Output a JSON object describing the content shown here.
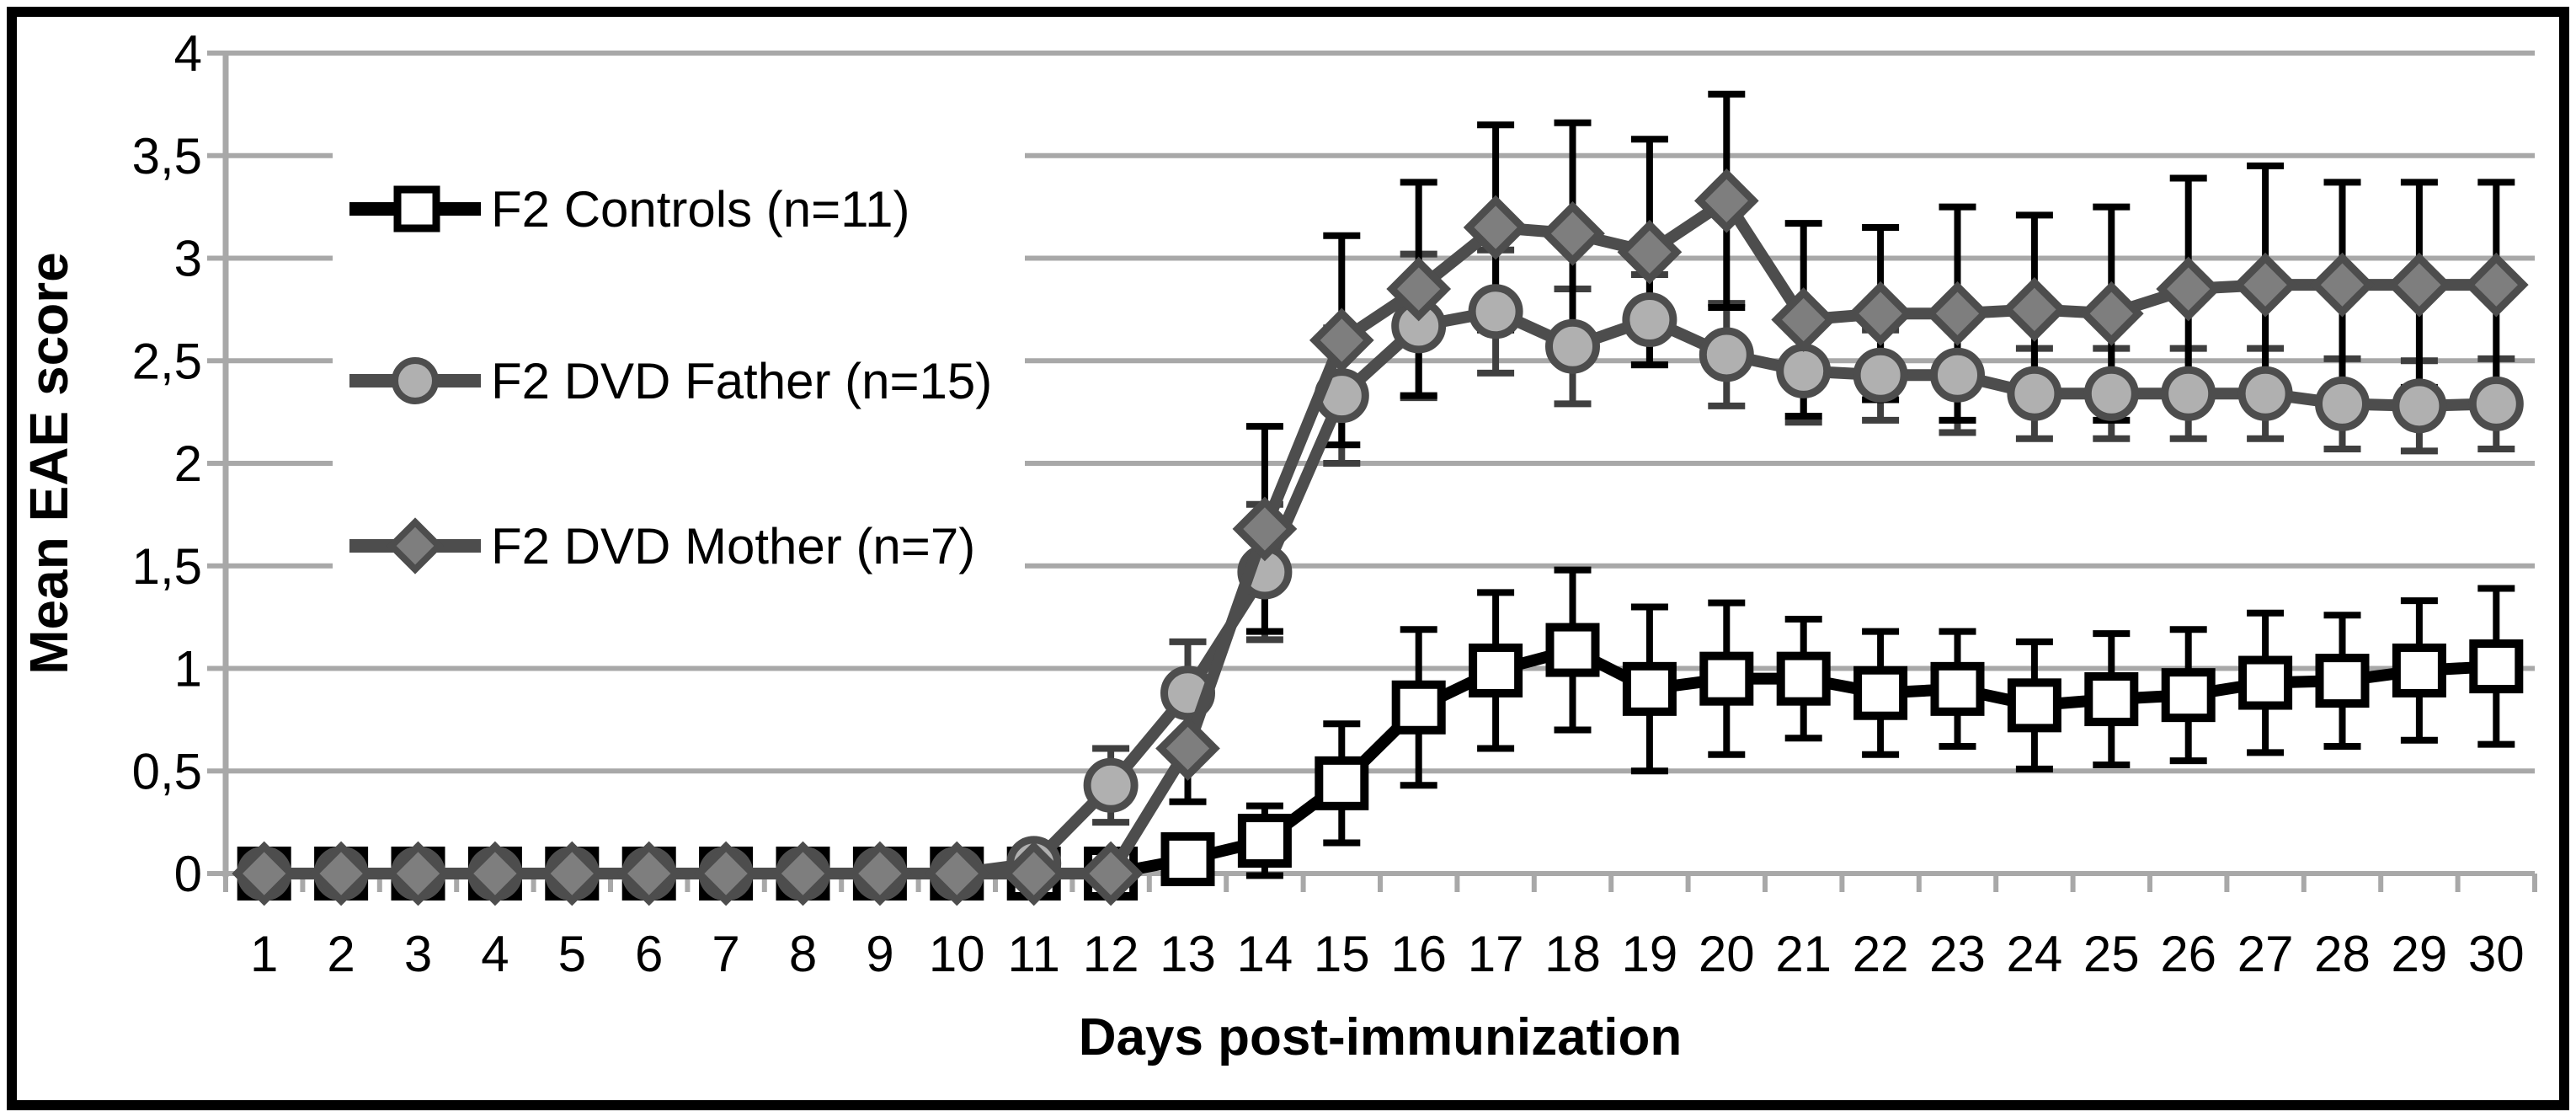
{
  "figure": {
    "background": "#FFFFFF",
    "border_color": "#000000"
  },
  "chart_data": {
    "type": "line",
    "title": "",
    "xlabel": "Days post-immunization",
    "ylabel": "Mean EAE score",
    "ylim": [
      0,
      4
    ],
    "ytick_step": 0.5,
    "ytick_labels": [
      "0",
      "0,5",
      "1",
      "1,5",
      "2",
      "2,5",
      "3",
      "3,5",
      "4"
    ],
    "categories": [
      "1",
      "2",
      "3",
      "4",
      "5",
      "6",
      "7",
      "8",
      "9",
      "10",
      "11",
      "12",
      "13",
      "14",
      "15",
      "16",
      "17",
      "18",
      "19",
      "20",
      "21",
      "22",
      "23",
      "24",
      "25",
      "26",
      "27",
      "28",
      "29",
      "30"
    ],
    "grid": "on",
    "legend_position": "inside-upper-left",
    "error_bars": "both-directions-with-caps",
    "colors": {
      "grid": "#A8A8A8",
      "axis": "#A8A8A8",
      "text": "#000000",
      "plot_background": "#FFFFFF"
    },
    "series": [
      {
        "name": "controls",
        "label": "F2 Controls (n=11)",
        "marker": "square",
        "line_color": "#000000",
        "marker_fill": "#FFFFFF",
        "marker_stroke": "#000000",
        "error_color": "#000000",
        "values": [
          0,
          0,
          0,
          0,
          0,
          0,
          0,
          0,
          0,
          0,
          0,
          0,
          0.07,
          0.16,
          0.44,
          0.81,
          0.99,
          1.09,
          0.9,
          0.95,
          0.95,
          0.88,
          0.9,
          0.82,
          0.85,
          0.87,
          0.93,
          0.94,
          0.99,
          1.01
        ],
        "errors": [
          0,
          0,
          0,
          0,
          0,
          0,
          0,
          0,
          0,
          0,
          0,
          0,
          0.05,
          0.17,
          0.29,
          0.38,
          0.38,
          0.39,
          0.4,
          0.37,
          0.29,
          0.3,
          0.28,
          0.31,
          0.32,
          0.32,
          0.34,
          0.32,
          0.34,
          0.38
        ]
      },
      {
        "name": "dvd-father",
        "label": "F2 DVD Father (n=15)",
        "marker": "circle",
        "line_color": "#4D4D4D",
        "marker_fill": "#B0B0B0",
        "marker_stroke": "#4D4D4D",
        "error_color": "#3F3F3F",
        "values": [
          0,
          0,
          0,
          0,
          0,
          0,
          0,
          0,
          0,
          0,
          0.05,
          0.43,
          0.88,
          1.47,
          2.33,
          2.67,
          2.74,
          2.57,
          2.7,
          2.53,
          2.45,
          2.43,
          2.43,
          2.34,
          2.34,
          2.34,
          2.34,
          2.29,
          2.28,
          2.29
        ],
        "errors": [
          0,
          0,
          0,
          0,
          0,
          0,
          0,
          0,
          0,
          0,
          0,
          0.18,
          0.25,
          0.33,
          0.33,
          0.35,
          0.3,
          0.28,
          0.22,
          0.25,
          0.25,
          0.22,
          0.28,
          0.22,
          0.22,
          0.22,
          0.22,
          0.22,
          0.22,
          0.22
        ]
      },
      {
        "name": "dvd-mother",
        "label": "F2 DVD Mother (n=7)",
        "marker": "diamond",
        "line_color": "#4D4D4D",
        "marker_fill": "#7E7E7E",
        "marker_stroke": "#4D4D4D",
        "error_color": "#000000",
        "values": [
          0,
          0,
          0,
          0,
          0,
          0,
          0,
          0,
          0,
          0,
          0,
          0,
          0.61,
          1.68,
          2.6,
          2.85,
          3.15,
          3.12,
          3.03,
          3.28,
          2.7,
          2.73,
          2.73,
          2.75,
          2.73,
          2.85,
          2.87,
          2.87,
          2.87,
          2.87
        ],
        "errors": [
          0,
          0,
          0,
          0,
          0,
          0,
          0,
          0,
          0,
          0,
          0,
          0,
          0.26,
          0.5,
          0.51,
          0.52,
          0.5,
          0.54,
          0.55,
          0.52,
          0.47,
          0.42,
          0.52,
          0.46,
          0.52,
          0.54,
          0.58,
          0.5,
          0.5,
          0.5
        ]
      }
    ]
  }
}
